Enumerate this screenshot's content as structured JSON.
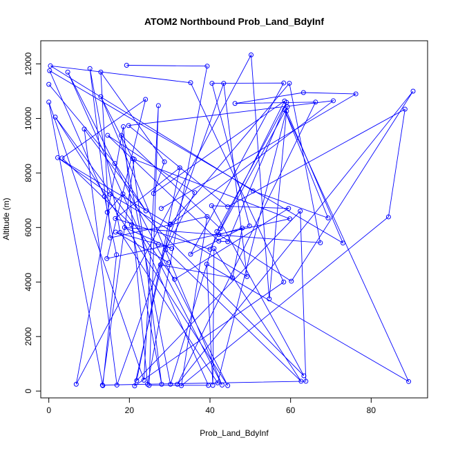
{
  "chart_data": {
    "type": "line",
    "title": "ATOM2 Northbound Prob_Land_BdyInf",
    "xlabel": "Prob_Land_BdyInf",
    "ylabel": "Altitude (m)",
    "xlim": [
      -2,
      94
    ],
    "ylim": [
      -250,
      12850
    ],
    "x_ticks": [
      0,
      20,
      40,
      60,
      80
    ],
    "y_ticks": [
      0,
      2000,
      4000,
      6000,
      8000,
      10000,
      12000
    ],
    "series_color": "#0000ff",
    "point_style": "open-circle",
    "series": [
      {
        "values": [
          [
            19.3,
            11950
          ],
          [
            39.3,
            11920
          ],
          [
            24.5,
            250
          ],
          [
            18.5,
            9700
          ],
          [
            6.8,
            250
          ],
          [
            50.2,
            12330
          ],
          [
            54.7,
            3380
          ],
          [
            59.0,
            10270
          ],
          [
            73.0,
            5430
          ],
          [
            0.2,
            11750
          ],
          [
            13.8,
            7140
          ],
          [
            16.8,
            5000
          ],
          [
            13.4,
            200
          ],
          [
            0.0,
            10600
          ],
          [
            23.6,
            400
          ],
          [
            27.2,
            10470
          ],
          [
            24.9,
            210
          ],
          [
            39.6,
            210
          ],
          [
            4.7,
            11700
          ],
          [
            44.4,
            200
          ],
          [
            1.6,
            10050
          ],
          [
            31.2,
            4100
          ],
          [
            59.5,
            6700
          ],
          [
            40.4,
            6800
          ],
          [
            63.3,
            560
          ],
          [
            18.4,
            7230
          ],
          [
            14.5,
            6560
          ],
          [
            10.2,
            11830
          ],
          [
            17.7,
            5820
          ],
          [
            41.9,
            300
          ],
          [
            59.2,
            10430
          ],
          [
            40.0,
            5200
          ],
          [
            16.5,
            6330
          ],
          [
            32.5,
            8190
          ],
          [
            21.8,
            380
          ],
          [
            62.4,
            6600
          ],
          [
            63.8,
            360
          ],
          [
            13.3,
            220
          ],
          [
            21.2,
            8500
          ],
          [
            59.8,
            6320
          ],
          [
            14.4,
            4860
          ],
          [
            24.0,
            10700
          ],
          [
            3.3,
            8550
          ],
          [
            20.5,
            6100
          ],
          [
            28.0,
            250
          ],
          [
            20.8,
            8530
          ],
          [
            12.9,
            10800
          ],
          [
            43.0,
            220
          ],
          [
            27.7,
            4630
          ],
          [
            45.6,
            4150
          ],
          [
            48.0,
            5980
          ],
          [
            35.2,
            5020
          ],
          [
            58.3,
            11300
          ],
          [
            40.5,
            11290
          ],
          [
            49.8,
            6060
          ],
          [
            42.2,
            5740
          ],
          [
            60.2,
            4030
          ],
          [
            90.4,
            11000
          ],
          [
            31.9,
            250
          ],
          [
            66.2,
            10600
          ],
          [
            46.2,
            10550
          ],
          [
            63.2,
            10950
          ],
          [
            76.2,
            10900
          ],
          [
            27.9,
            6700
          ]
        ]
      },
      {
        "values": [
          [
            0.0,
            11250
          ],
          [
            16.4,
            8350
          ],
          [
            24.1,
            6610
          ],
          [
            8.8,
            9610
          ],
          [
            16.9,
            220
          ],
          [
            43.4,
            11290
          ],
          [
            49.2,
            4200
          ],
          [
            15.2,
            7220
          ],
          [
            2.2,
            8560
          ],
          [
            30.1,
            6100
          ],
          [
            70.6,
            10650
          ],
          [
            19.8,
            9740
          ],
          [
            44.4,
            6760
          ],
          [
            88.4,
            10340
          ],
          [
            84.3,
            6390
          ],
          [
            32.9,
            200
          ],
          [
            39.3,
            6400
          ],
          [
            15.2,
            5620
          ],
          [
            12.9,
            11700
          ],
          [
            28.7,
            8410
          ],
          [
            26.0,
            7250
          ],
          [
            58.5,
            10640
          ],
          [
            42.6,
            5960
          ],
          [
            18.0,
            9380
          ],
          [
            30.2,
            250
          ],
          [
            41.7,
            5850
          ],
          [
            59.0,
            10590
          ],
          [
            44.4,
            5480
          ],
          [
            42.2,
            5500
          ],
          [
            14.6,
            9380
          ],
          [
            36.2,
            7280
          ],
          [
            29.0,
            5180
          ],
          [
            62.6,
            360
          ],
          [
            41.0,
            5230
          ],
          [
            40.7,
            210
          ],
          [
            39.2,
            4660
          ],
          [
            89.3,
            350
          ],
          [
            58.5,
            10320
          ],
          [
            69.3,
            6350
          ],
          [
            50.7,
            7340
          ],
          [
            0.4,
            11930
          ],
          [
            35.2,
            11310
          ],
          [
            58.3,
            4000
          ],
          [
            21.3,
            190
          ],
          [
            30.2,
            6130
          ],
          [
            59.7,
            11290
          ],
          [
            67.4,
            5440
          ],
          [
            18.8,
            6000
          ],
          [
            30.5,
            5230
          ],
          [
            27.2,
            5380
          ],
          [
            16.6,
            5830
          ],
          [
            29.8,
            4710
          ]
        ]
      }
    ]
  }
}
